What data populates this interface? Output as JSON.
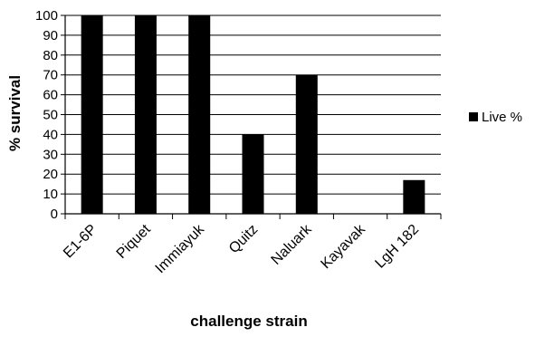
{
  "chart_data": {
    "type": "bar",
    "categories": [
      "E1-6P",
      "Piquet",
      "Immiayuk",
      "Quitz",
      "Naluark",
      "Kayavak",
      "LgH 182"
    ],
    "series": [
      {
        "name": "Live %",
        "values": [
          100,
          100,
          100,
          40,
          70,
          0,
          17
        ]
      }
    ],
    "xlabel": "challenge strain",
    "ylabel": "% survival",
    "ylim": [
      0,
      100
    ],
    "yticks": [
      0,
      10,
      20,
      30,
      40,
      50,
      60,
      70,
      80,
      90,
      100
    ],
    "grid": true,
    "legend": "right",
    "bar_color": "#000000"
  }
}
